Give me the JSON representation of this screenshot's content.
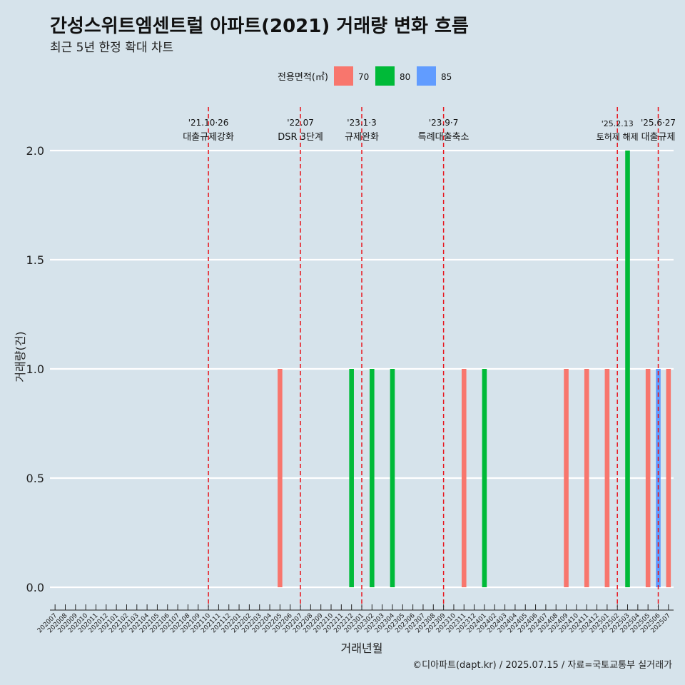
{
  "title": "간성스위트엠센트럴 아파트(2021) 거래량 변화 흐름",
  "subtitle": "최근 5년 한정 확대 차트",
  "caption": "©디아파트(dapt.kr) / 2025.07.15 / 자료=국토교통부 실거래가",
  "colors": {
    "background": "#d6e3eb",
    "gridline": "#ffffff",
    "vline": "#e8141c"
  },
  "chart_data": {
    "type": "bar",
    "xlabel": "거래년월",
    "ylabel": "거래량(건)",
    "ylim": [
      0,
      2
    ],
    "yticks": [
      0,
      0.5,
      1,
      1.5,
      2
    ],
    "ytick_labels": [
      "0.0",
      "0.5",
      "1.0",
      "1.5",
      "2.0"
    ],
    "grid": true,
    "legend": {
      "title": "전용면적(㎡)",
      "position": "top",
      "items": [
        {
          "label": "70",
          "color": "#f8766d"
        },
        {
          "label": "80",
          "color": "#00ba38"
        },
        {
          "label": "85",
          "color": "#619cff"
        }
      ]
    },
    "categories": [
      "202007",
      "202008",
      "202009",
      "202010",
      "202011",
      "202012",
      "202101",
      "202102",
      "202103",
      "202104",
      "202105",
      "202106",
      "202107",
      "202108",
      "202109",
      "202110",
      "202111",
      "202112",
      "202201",
      "202202",
      "202203",
      "202204",
      "202205",
      "202206",
      "202207",
      "202208",
      "202209",
      "202210",
      "202211",
      "202212",
      "202301",
      "202302",
      "202303",
      "202304",
      "202305",
      "202306",
      "202307",
      "202308",
      "202309",
      "202310",
      "202311",
      "202312",
      "202401",
      "202402",
      "202403",
      "202404",
      "202405",
      "202406",
      "202407",
      "202408",
      "202409",
      "202410",
      "202411",
      "202412",
      "202501",
      "202502",
      "202503",
      "202504",
      "202505",
      "202506",
      "202507"
    ],
    "bars": [
      {
        "month": "202205",
        "area": "70",
        "value": 1
      },
      {
        "month": "202212",
        "area": "80",
        "value": 1
      },
      {
        "month": "202302",
        "area": "80",
        "value": 1
      },
      {
        "month": "202304",
        "area": "80",
        "value": 1
      },
      {
        "month": "202311",
        "area": "70",
        "value": 1
      },
      {
        "month": "202401",
        "area": "80",
        "value": 1
      },
      {
        "month": "202409",
        "area": "70",
        "value": 1
      },
      {
        "month": "202411",
        "area": "70",
        "value": 1
      },
      {
        "month": "202501",
        "area": "70",
        "value": 1
      },
      {
        "month": "202503",
        "area": "80",
        "value": 2
      },
      {
        "month": "202505",
        "area": "70",
        "value": 1
      },
      {
        "month": "202506",
        "area": "85",
        "value": 1
      },
      {
        "month": "202507",
        "area": "70",
        "value": 1
      }
    ],
    "events": [
      {
        "x": "202110",
        "date": "'21.10·26",
        "label": "대출규제강화"
      },
      {
        "x": "202207",
        "date": "'22.07",
        "label": "DSR 3단계"
      },
      {
        "x": "202301",
        "date": "'23.1·3",
        "label": "규제완화"
      },
      {
        "x": "202309",
        "date": "'23.9·7",
        "label": "특례대출축소"
      },
      {
        "x": "202502",
        "date": "'25.2.13",
        "label": "토허제 해제"
      },
      {
        "x": "202506",
        "date": "'25.6·27",
        "label": "대출규제"
      }
    ]
  }
}
